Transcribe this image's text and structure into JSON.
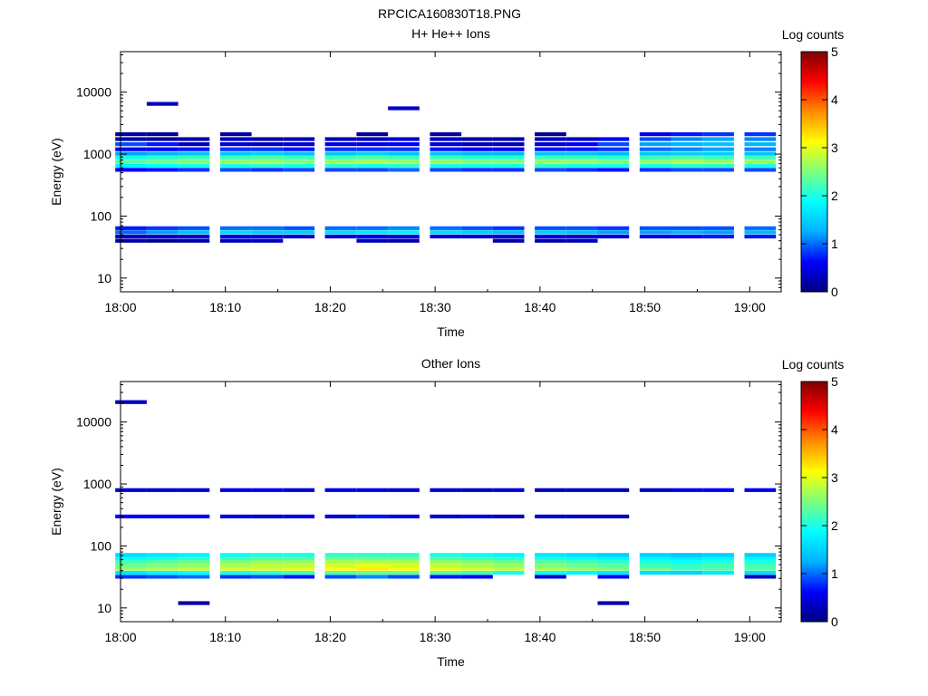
{
  "figure_title": "RPCICA160830T18.PNG",
  "colormap_stops": [
    "#00007f",
    "#0000ff",
    "#00b2ff",
    "#00ffff",
    "#7dff7d",
    "#ffff00",
    "#ff8c00",
    "#ff0000",
    "#7f0000"
  ],
  "chart_data": [
    {
      "type": "heatmap",
      "title": "H+ He++ Ions",
      "xlabel": "Time",
      "ylabel": "Energy (eV)",
      "y_scale": "log",
      "xlim": [
        "18:00",
        "19:03"
      ],
      "ylim": [
        6,
        45000
      ],
      "xticks": [
        "18:00",
        "18:10",
        "18:20",
        "18:30",
        "18:40",
        "18:50",
        "19:00"
      ],
      "yticks": [
        "10",
        "100",
        "1000",
        "10000"
      ],
      "colorbar": {
        "label": "Log counts",
        "range": [
          0,
          5
        ],
        "ticks": [
          "0",
          "1",
          "2",
          "3",
          "4",
          "5"
        ]
      },
      "time_bins": [
        "18:01",
        "18:04",
        "18:07",
        "18:11",
        "18:14",
        "18:17",
        "18:21",
        "18:24",
        "18:27",
        "18:31",
        "18:34",
        "18:37",
        "18:41",
        "18:44",
        "18:47",
        "18:51",
        "18:54",
        "18:57",
        "19:01"
      ],
      "rows": [
        {
          "energy_eV": 40,
          "log_counts": [
            0.2,
            0.1,
            0.2,
            0.3,
            0.3,
            0,
            0,
            0.3,
            0.2,
            0,
            0,
            0.2,
            0.2,
            0.3,
            0,
            0,
            0,
            0,
            0
          ]
        },
        {
          "energy_eV": 47,
          "log_counts": [
            0.3,
            0.4,
            0.4,
            0.5,
            0.5,
            0.4,
            0.4,
            0.5,
            0.5,
            0.4,
            0.4,
            0.4,
            0.5,
            0.4,
            0.4,
            0.5,
            0.6,
            0.7,
            0.7
          ]
        },
        {
          "energy_eV": 55,
          "log_counts": [
            1.0,
            1.2,
            1.4,
            1.6,
            1.5,
            1.5,
            1.6,
            1.7,
            1.8,
            1.6,
            1.5,
            1.4,
            1.5,
            1.4,
            1.2,
            1.2,
            1.3,
            1.2,
            1.3
          ]
        },
        {
          "energy_eV": 64,
          "log_counts": [
            0.7,
            0.8,
            0.9,
            1.0,
            1.0,
            0.9,
            1.0,
            1.0,
            1.1,
            1.0,
            0.9,
            0.8,
            0.9,
            0.9,
            0.8,
            0.9,
            0.9,
            0.9,
            1.0
          ]
        },
        {
          "energy_eV": 560,
          "log_counts": [
            0.6,
            0.7,
            0.8,
            0.9,
            0.8,
            0.9,
            0.9,
            0.9,
            1.0,
            0.9,
            0.8,
            0.8,
            0.9,
            0.8,
            0.7,
            0.8,
            0.9,
            0.9,
            0.9
          ]
        },
        {
          "energy_eV": 650,
          "log_counts": [
            1.8,
            1.9,
            2.0,
            2.0,
            2.1,
            2.0,
            2.1,
            2.0,
            2.1,
            2.0,
            2.0,
            2.0,
            2.1,
            2.0,
            2.0,
            2.0,
            2.1,
            2.1,
            2.0
          ]
        },
        {
          "energy_eV": 760,
          "log_counts": [
            2.3,
            2.4,
            2.5,
            2.6,
            2.6,
            2.5,
            2.6,
            2.7,
            2.6,
            2.6,
            2.5,
            2.5,
            2.6,
            2.6,
            2.5,
            2.6,
            2.7,
            2.6,
            2.6
          ]
        },
        {
          "energy_eV": 880,
          "log_counts": [
            2.0,
            2.1,
            2.2,
            2.2,
            2.3,
            2.2,
            2.2,
            2.3,
            2.2,
            2.2,
            2.1,
            2.1,
            2.2,
            2.2,
            2.1,
            2.2,
            2.3,
            2.2,
            2.2
          ]
        },
        {
          "energy_eV": 1020,
          "log_counts": [
            1.2,
            1.3,
            1.4,
            1.4,
            1.5,
            1.4,
            1.4,
            1.5,
            1.4,
            1.4,
            1.3,
            1.3,
            1.4,
            1.4,
            1.3,
            1.4,
            1.5,
            1.5,
            1.4
          ]
        },
        {
          "energy_eV": 1200,
          "log_counts": [
            0.6,
            0.6,
            0.7,
            0.8,
            0.8,
            0.7,
            0.8,
            0.8,
            0.8,
            0.7,
            0.6,
            0.6,
            0.7,
            0.7,
            0.8,
            1.0,
            1.1,
            1.2,
            1.1
          ]
        },
        {
          "energy_eV": 1450,
          "log_counts": [
            0.9,
            0.7,
            0.3,
            0.4,
            0.3,
            0.4,
            0.5,
            0.5,
            0.6,
            0.4,
            0.3,
            0.3,
            0.4,
            0.6,
            0.9,
            1.2,
            1.3,
            1.4,
            1.3
          ]
        },
        {
          "energy_eV": 1750,
          "log_counts": [
            0.2,
            0.1,
            0.2,
            0.3,
            0.2,
            0.3,
            0.3,
            0.3,
            0.4,
            0.3,
            0.2,
            0.2,
            0.3,
            0.3,
            0.6,
            0.9,
            1.1,
            1.2,
            1.1
          ]
        },
        {
          "energy_eV": 2100,
          "log_counts": [
            0.2,
            0.1,
            0,
            0.2,
            0,
            0,
            0,
            0.1,
            0,
            0.2,
            0,
            0,
            0.1,
            0,
            0,
            0.5,
            0.7,
            0.8,
            0.8
          ]
        },
        {
          "energy_eV": 5500,
          "log_counts": [
            0,
            0,
            0,
            0,
            0,
            0,
            0,
            0,
            0.4,
            0,
            0,
            0,
            0,
            0,
            0,
            0,
            0,
            0,
            0
          ]
        },
        {
          "energy_eV": 6500,
          "log_counts": [
            0,
            0.3,
            0,
            0,
            0,
            0,
            0,
            0,
            0,
            0,
            0,
            0,
            0,
            0,
            0,
            0,
            0,
            0,
            0
          ]
        }
      ]
    },
    {
      "type": "heatmap",
      "title": "Other Ions",
      "xlabel": "Time",
      "ylabel": "Energy (eV)",
      "y_scale": "log",
      "xlim": [
        "18:00",
        "19:03"
      ],
      "ylim": [
        6,
        45000
      ],
      "xticks": [
        "18:00",
        "18:10",
        "18:20",
        "18:30",
        "18:40",
        "18:50",
        "19:00"
      ],
      "yticks": [
        "10",
        "100",
        "1000",
        "10000"
      ],
      "colorbar": {
        "label": "Log counts",
        "range": [
          0,
          5
        ],
        "ticks": [
          "0",
          "1",
          "2",
          "3",
          "4",
          "5"
        ]
      },
      "time_bins": [
        "18:01",
        "18:04",
        "18:07",
        "18:11",
        "18:14",
        "18:17",
        "18:21",
        "18:24",
        "18:27",
        "18:31",
        "18:34",
        "18:37",
        "18:41",
        "18:44",
        "18:47",
        "18:51",
        "18:54",
        "18:57",
        "19:01"
      ],
      "rows": [
        {
          "energy_eV": 12,
          "log_counts": [
            0,
            0,
            0.2,
            0,
            0,
            0,
            0,
            0,
            0,
            0,
            0,
            0,
            0,
            0,
            0.2,
            0,
            0,
            0,
            0
          ]
        },
        {
          "energy_eV": 32,
          "log_counts": [
            0.8,
            0.9,
            1.0,
            0.8,
            0.9,
            0.7,
            0.9,
            1.1,
            0.9,
            0.7,
            0.6,
            0,
            0.4,
            0,
            0.6,
            0,
            0,
            0,
            0.3
          ]
        },
        {
          "energy_eV": 37,
          "log_counts": [
            1.7,
            1.8,
            1.9,
            2.0,
            2.1,
            2.2,
            2.3,
            2.4,
            2.4,
            2.3,
            2.2,
            2.0,
            1.9,
            1.8,
            1.7,
            1.6,
            1.5,
            1.7,
            1.6
          ]
        },
        {
          "energy_eV": 43,
          "log_counts": [
            2.6,
            2.7,
            2.8,
            2.9,
            2.9,
            3.0,
            3.1,
            3.2,
            3.1,
            3.0,
            2.9,
            2.8,
            2.7,
            2.6,
            2.5,
            2.4,
            2.2,
            2.3,
            2.3
          ]
        },
        {
          "energy_eV": 49,
          "log_counts": [
            2.4,
            2.5,
            2.6,
            2.7,
            2.8,
            2.8,
            2.9,
            3.0,
            2.9,
            2.8,
            2.7,
            2.6,
            2.5,
            2.4,
            2.3,
            2.2,
            2.1,
            2.2,
            2.2
          ]
        },
        {
          "energy_eV": 56,
          "log_counts": [
            2.2,
            2.3,
            2.4,
            2.5,
            2.6,
            2.6,
            2.7,
            2.7,
            2.7,
            2.6,
            2.5,
            2.4,
            2.3,
            2.2,
            2.1,
            2.0,
            1.9,
            2.0,
            2.0
          ]
        },
        {
          "energy_eV": 64,
          "log_counts": [
            1.9,
            2.0,
            2.1,
            2.2,
            2.3,
            2.3,
            2.4,
            2.4,
            2.4,
            2.3,
            2.2,
            2.1,
            2.0,
            1.9,
            1.8,
            1.8,
            1.7,
            1.8,
            1.8
          ]
        },
        {
          "energy_eV": 72,
          "log_counts": [
            1.6,
            1.7,
            1.8,
            1.9,
            2.0,
            2.0,
            2.1,
            2.1,
            2.1,
            2.0,
            1.9,
            1.8,
            1.7,
            1.6,
            1.5,
            1.5,
            1.4,
            1.5,
            1.5
          ]
        },
        {
          "energy_eV": 300,
          "log_counts": [
            0.6,
            0.6,
            0.6,
            0.5,
            0.4,
            0.5,
            0.4,
            0.7,
            0.5,
            0.4,
            0.5,
            0.3,
            0.4,
            0.3,
            0.3,
            0,
            0,
            0,
            0
          ]
        },
        {
          "energy_eV": 800,
          "log_counts": [
            0.4,
            0.4,
            0.4,
            0.5,
            0.6,
            0.4,
            0.5,
            0.5,
            0.4,
            0.4,
            0.3,
            0.4,
            0.3,
            0.3,
            0.3,
            0.3,
            0.5,
            0.6,
            0.5
          ]
        },
        {
          "energy_eV": 21000,
          "log_counts": [
            0.3,
            0,
            0,
            0,
            0,
            0,
            0,
            0,
            0,
            0,
            0,
            0,
            0,
            0,
            0,
            0,
            0,
            0,
            0
          ]
        }
      ]
    }
  ]
}
